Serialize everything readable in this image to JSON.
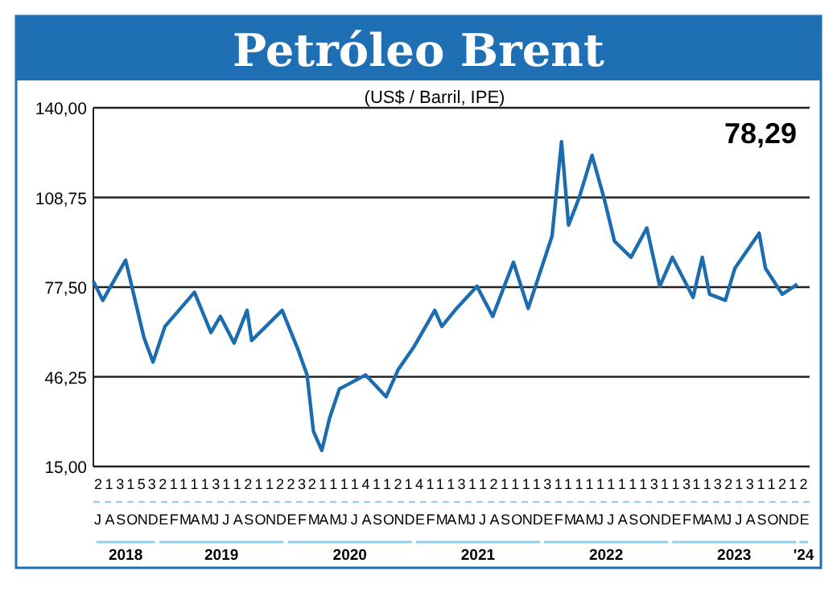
{
  "chart_data": {
    "type": "line",
    "title": "Petróleo Brent",
    "subtitle": "(US$ / Barril, IPE)",
    "annotations": [
      "78,29",
      "2131532111131121122321111411214111311211113111111111311311321311212",
      "JASONDEFMAMJJASONDEFMAMJJASONDEFMAMJJASONDEFMAMJJASONDEFMAMJJASONDE"
    ],
    "xlim": [
      "2018-07-01",
      "2024-02-01"
    ],
    "ylim": [
      15,
      140
    ],
    "yticks": [
      {
        "value": 15,
        "label": "15,00"
      },
      {
        "value": 46.25,
        "label": "46,25"
      },
      {
        "value": 77.5,
        "label": "77,50"
      },
      {
        "value": 108.75,
        "label": "108,75"
      },
      {
        "value": 140,
        "label": "140,00"
      }
    ],
    "xticks": [
      {
        "value": "2018-10-01",
        "label": "2018"
      },
      {
        "value": "2019-07-01",
        "label": "2019"
      },
      {
        "value": "2020-07-01",
        "label": "2020"
      },
      {
        "value": "2021-07-01",
        "label": "2021"
      },
      {
        "value": "2022-07-01",
        "label": "2022"
      },
      {
        "value": "2023-07-01",
        "label": "2023"
      },
      {
        "value": "2024-01-15",
        "label": "'24"
      }
    ],
    "grid": "y",
    "line_style": "solid",
    "x": [
      "2018-07-01",
      "2018-07-28",
      "2018-10-01",
      "2018-11-22",
      "2018-12-18",
      "2019-01-21",
      "2019-04-15",
      "2019-06-01",
      "2019-06-28",
      "2019-08-06",
      "2019-09-12",
      "2019-09-25",
      "2019-12-21",
      "2020-02-03",
      "2020-03-01",
      "2020-03-19",
      "2020-04-12",
      "2020-05-04",
      "2020-06-01",
      "2020-08-15",
      "2020-10-12",
      "2020-11-15",
      "2021-01-01",
      "2021-02-28",
      "2021-03-20",
      "2021-05-01",
      "2021-06-28",
      "2021-08-12",
      "2021-10-10",
      "2021-11-21",
      "2022-01-28",
      "2022-02-24",
      "2022-03-16",
      "2022-04-15",
      "2022-05-22",
      "2022-06-25",
      "2022-07-25",
      "2022-09-10",
      "2022-10-25",
      "2022-12-01",
      "2023-01-06",
      "2023-03-06",
      "2023-04-01",
      "2023-04-22",
      "2023-06-06",
      "2023-07-03",
      "2023-09-10",
      "2023-09-28",
      "2023-11-15",
      "2023-12-28"
    ],
    "series": [
      {
        "color": "#1c6cb0",
        "values": [
          79.5,
          72.9,
          86.9,
          60,
          51.4,
          63.8,
          75.7,
          61.7,
          67.3,
          58,
          69.4,
          58.9,
          69.4,
          56.1,
          46.9,
          27.3,
          20.6,
          31.8,
          42,
          46.9,
          39.3,
          48.6,
          57,
          69.4,
          63.8,
          70.1,
          77.8,
          67.3,
          86.2,
          70.1,
          95.3,
          128.2,
          99.1,
          108.6,
          123.4,
          108.6,
          93.5,
          87.9,
          98.1,
          77.8,
          87.9,
          73.9,
          87.9,
          75,
          72.9,
          84.1,
          96.3,
          84.1,
          75,
          78.5
        ]
      }
    ]
  }
}
